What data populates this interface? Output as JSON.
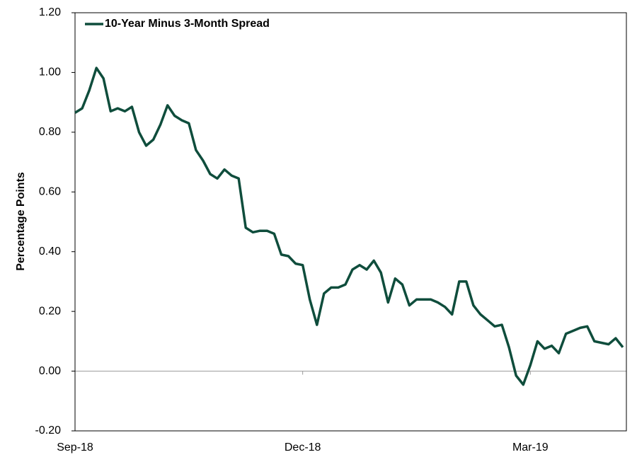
{
  "chart_data": {
    "type": "line",
    "y_label": "Percentage Points",
    "categories": [
      "Sep-18",
      null,
      null,
      null,
      null,
      null,
      null,
      null,
      null,
      null,
      null,
      null,
      null,
      null,
      null,
      null,
      null,
      null,
      null,
      null,
      null,
      null,
      null,
      null,
      null,
      null,
      null,
      null,
      null,
      null,
      null,
      null,
      "Dec-18",
      null,
      null,
      null,
      null,
      null,
      null,
      null,
      null,
      null,
      null,
      null,
      null,
      null,
      null,
      null,
      null,
      null,
      null,
      null,
      null,
      null,
      null,
      null,
      null,
      null,
      null,
      null,
      null,
      null,
      null,
      null,
      "Mar-19",
      null,
      null,
      null,
      null,
      null,
      null,
      null,
      null,
      null,
      null,
      null,
      null,
      null
    ],
    "series": [
      {
        "name": "10-Year Minus 3-Month Spread",
        "color": "#0f4d3c",
        "values": [
          0.865,
          0.88,
          0.94,
          1.015,
          0.98,
          0.87,
          0.88,
          0.87,
          0.885,
          0.8,
          0.755,
          0.775,
          0.825,
          0.89,
          0.855,
          0.84,
          0.83,
          0.74,
          0.705,
          0.66,
          0.645,
          0.675,
          0.655,
          0.645,
          0.48,
          0.465,
          0.47,
          0.47,
          0.46,
          0.39,
          0.385,
          0.36,
          0.355,
          0.24,
          0.155,
          0.26,
          0.28,
          0.28,
          0.29,
          0.34,
          0.355,
          0.34,
          0.37,
          0.33,
          0.23,
          0.31,
          0.29,
          0.22,
          0.24,
          0.24,
          0.24,
          0.23,
          0.215,
          0.19,
          0.3,
          0.3,
          0.22,
          0.19,
          0.17,
          0.15,
          0.155,
          0.08,
          -0.015,
          -0.045,
          0.02,
          0.1,
          0.075,
          0.085,
          0.06,
          0.125,
          0.135,
          0.145,
          0.15,
          0.1,
          0.095,
          0.09,
          0.11,
          0.08
        ]
      }
    ],
    "ylim": [
      -0.2,
      1.2
    ],
    "yticks": [
      {
        "value": -0.2,
        "label": "-0.20"
      },
      {
        "value": 0,
        "label": "0.00"
      },
      {
        "value": 0.2,
        "label": "0.20"
      },
      {
        "value": 0.4,
        "label": "0.40"
      },
      {
        "value": 0.6,
        "label": "0.60"
      },
      {
        "value": 0.8,
        "label": "0.80"
      },
      {
        "value": 1.0,
        "label": "1.00"
      },
      {
        "value": 1.2,
        "label": "1.20"
      }
    ],
    "legend": "upper left"
  }
}
